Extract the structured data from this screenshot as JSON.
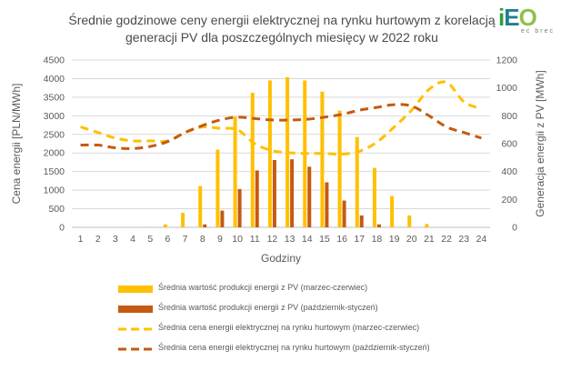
{
  "chart_data": {
    "type": "bar",
    "title_line1": "Średnie godzinowe ceny energii elektrycznej na rynku hurtowym z korelacją",
    "title_line2": "generacji PV dla poszczególnych miesięcy w 2022 roku",
    "xlabel": "Godziny",
    "ylabel_left": "Cena energii [PLN/MWh]",
    "ylabel_right": "Generacja energii z PV [MWh]",
    "categories": [
      "1",
      "2",
      "3",
      "4",
      "5",
      "6",
      "7",
      "8",
      "9",
      "10",
      "11",
      "12",
      "13",
      "14",
      "15",
      "16",
      "17",
      "18",
      "19",
      "20",
      "21",
      "22",
      "23",
      "24"
    ],
    "y_left_ticks": [
      "0",
      "500",
      "1000",
      "1500",
      "2000",
      "2500",
      "3000",
      "3500",
      "4000",
      "4500"
    ],
    "y_right_ticks": [
      "0",
      "200",
      "400",
      "600",
      "800",
      "1000",
      "1200"
    ],
    "ylim_left": [
      0,
      4500
    ],
    "ylim_right": [
      0,
      1200
    ],
    "bar_series": [
      {
        "name": "Średnia wartość produkcji energii z PV (marzec-czerwiec)",
        "color": "#FFC000",
        "values": [
          0,
          0,
          0,
          0,
          10,
          80,
          390,
          1110,
          2090,
          2980,
          3620,
          3950,
          4040,
          3950,
          3650,
          3140,
          2430,
          1600,
          840,
          320,
          90,
          0,
          0,
          0
        ]
      },
      {
        "name": "Średnia wartość produkcji energii z PV (październik-styczeń)",
        "color": "#C55A11",
        "values": [
          0,
          0,
          0,
          0,
          0,
          0,
          0,
          80,
          450,
          1030,
          1530,
          1810,
          1830,
          1630,
          1210,
          720,
          320,
          80,
          0,
          0,
          0,
          0,
          0,
          0
        ]
      }
    ],
    "line_series": [
      {
        "name": "Średnia cena energii elektrycznej na rynku hurtowym (marzec-czerwiec)",
        "color": "#FFC000",
        "values": [
          720,
          680,
          640,
          620,
          620,
          620,
          680,
          720,
          710,
          700,
          600,
          550,
          535,
          530,
          530,
          525,
          545,
          610,
          720,
          840,
          990,
          1040,
          900,
          850
        ]
      },
      {
        "name": "Średnia cena energii elektrycznej na rynku hurtowym (październik-styczeń)",
        "color": "#C55A11",
        "values": [
          590,
          590,
          570,
          565,
          580,
          615,
          680,
          730,
          770,
          790,
          780,
          770,
          770,
          775,
          790,
          810,
          840,
          860,
          880,
          870,
          800,
          720,
          680,
          640
        ]
      }
    ],
    "grid": true,
    "legend_position": "bottom"
  },
  "logo": {
    "part1": "i",
    "part2": "E",
    "part3": "O",
    "sub": "ec brec"
  }
}
